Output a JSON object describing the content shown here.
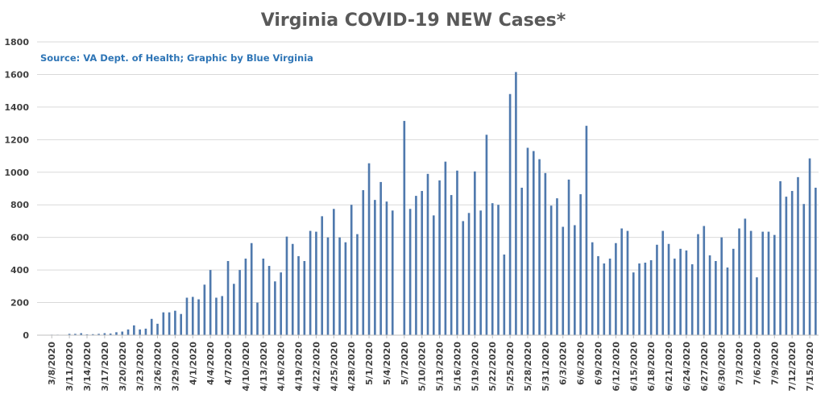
{
  "chart_data": {
    "type": "bar",
    "title": "Virginia COVID-19 NEW Cases*",
    "annotation": "Source: VA Dept. of Health; Graphic by Blue Virginia",
    "xlabel": "",
    "ylabel": "",
    "ylim": [
      0,
      1800
    ],
    "yticks": [
      0,
      200,
      400,
      600,
      800,
      1000,
      1200,
      1400,
      1600,
      1800
    ],
    "grid": true,
    "legend": "none",
    "bar_color": "#4f79ad",
    "start_date": "2020-03-06",
    "xtick_labels": [
      "3/8/2020",
      "3/11/2020",
      "3/14/2020",
      "3/17/2020",
      "3/20/2020",
      "3/23/2020",
      "3/26/2020",
      "3/29/2020",
      "4/1/2020",
      "4/4/2020",
      "4/7/2020",
      "4/10/2020",
      "4/13/2020",
      "4/16/2020",
      "4/19/2020",
      "4/22/2020",
      "4/25/2020",
      "4/28/2020",
      "5/1/2020",
      "5/4/2020",
      "5/7/2020",
      "5/10/2020",
      "5/13/2020",
      "5/16/2020",
      "5/19/2020",
      "5/22/2020",
      "5/25/2020",
      "5/28/2020",
      "5/31/2020",
      "6/3/2020",
      "6/6/2020",
      "6/9/2020",
      "6/12/2020",
      "6/15/2020",
      "6/18/2020",
      "6/21/2020",
      "6/24/2020",
      "6/27/2020",
      "6/30/2020",
      "7/3/2020",
      "7/6/2020",
      "7/9/2020",
      "7/12/2020",
      "7/15/2020"
    ],
    "categories": [
      "3/6/2020",
      "3/7/2020",
      "3/8/2020",
      "3/9/2020",
      "3/10/2020",
      "3/11/2020",
      "3/12/2020",
      "3/13/2020",
      "3/14/2020",
      "3/15/2020",
      "3/16/2020",
      "3/17/2020",
      "3/18/2020",
      "3/19/2020",
      "3/20/2020",
      "3/21/2020",
      "3/22/2020",
      "3/23/2020",
      "3/24/2020",
      "3/25/2020",
      "3/26/2020",
      "3/27/2020",
      "3/28/2020",
      "3/29/2020",
      "3/30/2020",
      "3/31/2020",
      "4/1/2020",
      "4/2/2020",
      "4/3/2020",
      "4/4/2020",
      "4/5/2020",
      "4/6/2020",
      "4/7/2020",
      "4/8/2020",
      "4/9/2020",
      "4/10/2020",
      "4/11/2020",
      "4/12/2020",
      "4/13/2020",
      "4/14/2020",
      "4/15/2020",
      "4/16/2020",
      "4/17/2020",
      "4/18/2020",
      "4/19/2020",
      "4/20/2020",
      "4/21/2020",
      "4/22/2020",
      "4/23/2020",
      "4/24/2020",
      "4/25/2020",
      "4/26/2020",
      "4/27/2020",
      "4/28/2020",
      "4/29/2020",
      "4/30/2020",
      "5/1/2020",
      "5/2/2020",
      "5/3/2020",
      "5/4/2020",
      "5/5/2020",
      "5/6/2020",
      "5/7/2020",
      "5/8/2020",
      "5/9/2020",
      "5/10/2020",
      "5/11/2020",
      "5/12/2020",
      "5/13/2020",
      "5/14/2020",
      "5/15/2020",
      "5/16/2020",
      "5/17/2020",
      "5/18/2020",
      "5/19/2020",
      "5/20/2020",
      "5/21/2020",
      "5/22/2020",
      "5/23/2020",
      "5/24/2020",
      "5/25/2020",
      "5/26/2020",
      "5/27/2020",
      "5/28/2020",
      "5/29/2020",
      "5/30/2020",
      "5/31/2020",
      "6/1/2020",
      "6/2/2020",
      "6/3/2020",
      "6/4/2020",
      "6/5/2020",
      "6/6/2020",
      "6/7/2020",
      "6/8/2020",
      "6/9/2020",
      "6/10/2020",
      "6/11/2020",
      "6/12/2020",
      "6/13/2020",
      "6/14/2020",
      "6/15/2020",
      "6/16/2020",
      "6/17/2020",
      "6/18/2020",
      "6/19/2020",
      "6/20/2020",
      "6/21/2020",
      "6/22/2020",
      "6/23/2020",
      "6/24/2020",
      "6/25/2020",
      "6/26/2020",
      "6/27/2020",
      "6/28/2020",
      "6/29/2020",
      "6/30/2020",
      "7/1/2020",
      "7/2/2020",
      "7/3/2020",
      "7/4/2020",
      "7/5/2020",
      "7/6/2020",
      "7/7/2020",
      "7/8/2020",
      "7/9/2020",
      "7/10/2020",
      "7/11/2020",
      "7/12/2020",
      "7/13/2020",
      "7/14/2020",
      "7/15/2020",
      "7/16/2020"
    ],
    "values": [
      1,
      1,
      3,
      3,
      2,
      8,
      8,
      12,
      5,
      6,
      8,
      12,
      10,
      18,
      22,
      35,
      60,
      35,
      40,
      100,
      70,
      140,
      140,
      150,
      130,
      230,
      235,
      220,
      310,
      400,
      230,
      240,
      455,
      315,
      400,
      470,
      565,
      200,
      470,
      425,
      330,
      385,
      605,
      560,
      485,
      455,
      640,
      635,
      730,
      600,
      775,
      600,
      570,
      800,
      620,
      890,
      1055,
      830,
      940,
      820,
      765,
      0,
      1315,
      775,
      855,
      885,
      990,
      735,
      950,
      1065,
      860,
      1010,
      700,
      750,
      1005,
      765,
      1230,
      810,
      800,
      495,
      1480,
      1615,
      905,
      1150,
      1130,
      1080,
      995,
      795,
      840,
      665,
      955,
      675,
      865,
      1285,
      570,
      485,
      440,
      470,
      565,
      655,
      640,
      385,
      440,
      445,
      460,
      555,
      640,
      560,
      470,
      530,
      520,
      435,
      620,
      670,
      490,
      455,
      600,
      415,
      530,
      655,
      715,
      640,
      355,
      635,
      635,
      615,
      945,
      850,
      885,
      970,
      805,
      1085,
      905
    ]
  }
}
